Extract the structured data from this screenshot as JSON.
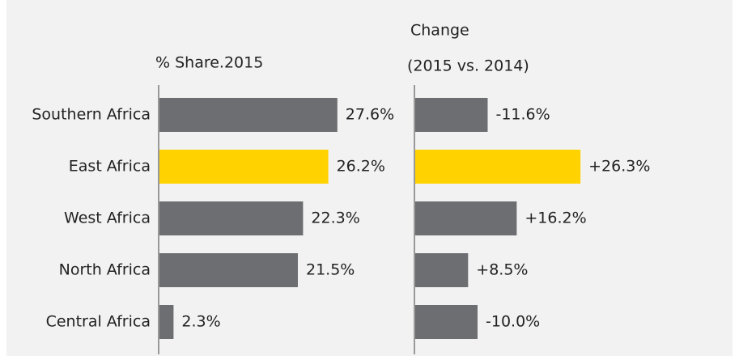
{
  "chart_data": [
    {
      "type": "bar",
      "orientation": "horizontal",
      "title": "% Share.2015",
      "categories": [
        "Southern Africa",
        "East Africa",
        "West Africa",
        "North Africa",
        "Central Africa"
      ],
      "values": [
        27.6,
        26.2,
        22.3,
        21.5,
        2.3
      ],
      "value_labels": [
        "27.6%",
        "26.2%",
        "22.3%",
        "21.5%",
        "2.3%"
      ],
      "colors": [
        "#6d6e71",
        "#ffd200",
        "#6d6e71",
        "#6d6e71",
        "#6d6e71"
      ]
    },
    {
      "type": "bar",
      "orientation": "horizontal",
      "title": [
        "Change",
        "(2015 vs. 2014)"
      ],
      "values": [
        -11.6,
        26.3,
        16.2,
        8.5,
        -10.0
      ],
      "value_labels": [
        "-11.6%",
        "+26.3%",
        "+16.2%",
        "+8.5%",
        "-10.0%"
      ],
      "colors": [
        "#6d6e71",
        "#ffd200",
        "#6d6e71",
        "#6d6e71",
        "#6d6e71"
      ]
    }
  ]
}
